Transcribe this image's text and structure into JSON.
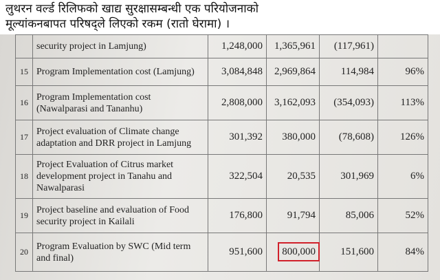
{
  "header": {
    "lines": [
      "लुथरन वर्ल्ड रिलिफको खाद्य सुरक्षासम्बन्धी एक परियोजनाको",
      "मूल्यांकनबापत परिषद्ले लिएको रकम (रातो घेरामा) ।"
    ]
  },
  "table": {
    "rows": [
      [
        "",
        "security project in Lamjung)",
        "1,248,000",
        "1,365,961",
        "(117,961)",
        ""
      ],
      [
        "15",
        "Program Implementation cost (Lamjung)",
        "3,084,848",
        "2,969,864",
        "114,984",
        "96%"
      ],
      [
        "16",
        "Program Implementation cost (Nawalparasi and Tananhu)",
        "2,808,000",
        "3,162,093",
        "(354,093)",
        "113%"
      ],
      [
        "17",
        "Project evaluation of Climate change adaptation and DRR project in Lamjung",
        "301,392",
        "380,000",
        "(78,608)",
        "126%"
      ],
      [
        "18",
        "Project Evaluation of Citrus market development project in Tanahu and Nawalparasi",
        "322,504",
        "20,535",
        "301,969",
        "6%"
      ],
      [
        "19",
        "Project baseline and evaluation of Food security project in Kailali",
        "176,800",
        "91,794",
        "85,006",
        "52%"
      ],
      [
        "20",
        "Program Evaluation by  SWC (Mid term and final)",
        "951,600",
        "800,000",
        "151,600",
        "84%"
      ]
    ]
  }
}
